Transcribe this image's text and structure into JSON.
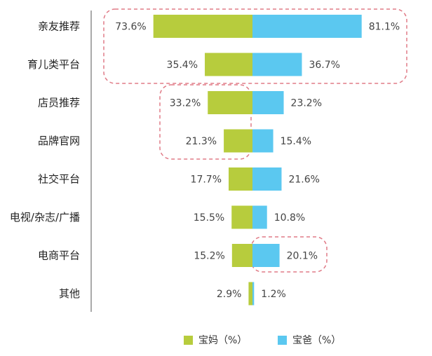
{
  "chart_data": {
    "type": "bar",
    "orientation": "horizontal-diverging",
    "categories": [
      "亲友推荐",
      "育儿类平台",
      "店员推荐",
      "品牌官网",
      "社交平台",
      "电视/杂志/广播",
      "电商平台",
      "其他"
    ],
    "series": [
      {
        "name": "宝妈（%）",
        "color": "#b7cc3d",
        "values": [
          73.6,
          35.4,
          33.2,
          21.3,
          17.7,
          15.5,
          15.2,
          2.9
        ],
        "labels": [
          "73.6%",
          "35.4%",
          "33.2%",
          "21.3%",
          "17.7%",
          "15.5%",
          "15.2%",
          "2.9%"
        ]
      },
      {
        "name": "宝爸（%）",
        "color": "#5bc8f0",
        "values": [
          81.1,
          36.7,
          23.2,
          15.4,
          21.6,
          10.8,
          20.1,
          1.2
        ],
        "labels": [
          "81.1%",
          "36.7%",
          "23.2%",
          "15.4%",
          "21.6%",
          "10.8%",
          "20.1%",
          "1.2%"
        ]
      }
    ],
    "xlim": [
      0,
      85
    ],
    "legend_position": "bottom-center",
    "highlight_color": "#e07b87"
  }
}
